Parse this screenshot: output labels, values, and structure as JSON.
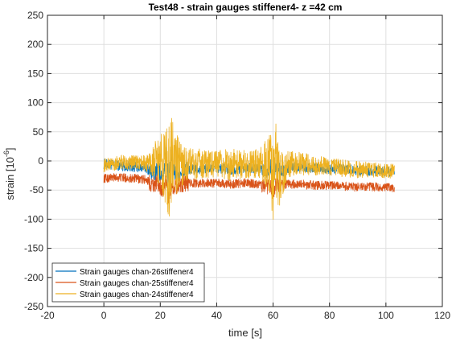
{
  "chart_data": {
    "type": "line",
    "title": "Test48 - strain gauges stiffener4- z =42 cm",
    "xlabel": "time [s]",
    "ylabel_base": "strain [10",
    "ylabel_exp": "-6",
    "ylabel_tail": "]",
    "xlim": [
      -20,
      120
    ],
    "ylim": [
      -250,
      250
    ],
    "xticks": [
      -20,
      0,
      20,
      40,
      60,
      80,
      100,
      120
    ],
    "yticks": [
      -250,
      -200,
      -150,
      -100,
      -50,
      0,
      50,
      100,
      150,
      200,
      250
    ],
    "grid": true,
    "legend_position": "bottom-left",
    "series": [
      {
        "name": "Strain gauges chan-26stiffener4",
        "color": "#0072BD",
        "x": [
          0,
          5,
          10,
          15,
          17,
          19,
          21,
          22,
          23,
          24,
          25,
          27,
          30,
          35,
          40,
          45,
          50,
          55,
          58,
          59,
          60,
          61,
          62,
          65,
          70,
          75,
          80,
          85,
          90,
          95,
          100,
          103
        ],
        "y": [
          -5,
          -8,
          -10,
          -12,
          -20,
          -15,
          -25,
          15,
          -30,
          10,
          -20,
          -18,
          -15,
          -14,
          -12,
          -15,
          -12,
          -14,
          -20,
          -5,
          -40,
          -10,
          -15,
          -12,
          -10,
          -12,
          -15,
          -14,
          -16,
          -17,
          -18,
          -18
        ]
      },
      {
        "name": "Strain gauges chan-25stiffener4",
        "color": "#D95319",
        "x": [
          0,
          5,
          10,
          15,
          17,
          19,
          21,
          22,
          23,
          24,
          25,
          27,
          30,
          35,
          40,
          45,
          50,
          55,
          58,
          59,
          60,
          61,
          62,
          65,
          70,
          75,
          80,
          85,
          90,
          95,
          100,
          103
        ],
        "y": [
          -30,
          -28,
          -30,
          -32,
          -40,
          -38,
          -50,
          -35,
          -60,
          -40,
          -45,
          -40,
          -38,
          -38,
          -38,
          -40,
          -38,
          -40,
          -45,
          -42,
          -55,
          -40,
          -42,
          -40,
          -40,
          -42,
          -42,
          -44,
          -45,
          -45,
          -46,
          -46
        ]
      },
      {
        "name": "Strain gauges chan-24stiffener4",
        "color": "#EDB120",
        "x": [
          0,
          5,
          10,
          15,
          17,
          19,
          21,
          22,
          23,
          24,
          25,
          27,
          30,
          35,
          40,
          45,
          50,
          55,
          58,
          59,
          60,
          61,
          62,
          65,
          70,
          75,
          80,
          85,
          90,
          95,
          100,
          103
        ],
        "y": [
          5,
          6,
          7,
          8,
          20,
          25,
          30,
          60,
          -110,
          87,
          -20,
          20,
          15,
          10,
          8,
          10,
          8,
          10,
          30,
          55,
          -115,
          65,
          -95,
          10,
          5,
          2,
          0,
          -2,
          -3,
          -5,
          -6,
          -6
        ],
        "x_min": [
          0,
          5,
          10,
          15,
          17,
          19,
          21,
          22,
          23,
          24,
          25,
          27,
          30,
          35,
          40,
          45,
          50,
          55,
          58,
          59,
          60,
          61,
          62,
          65,
          70,
          75,
          80,
          85,
          90,
          95,
          100,
          103
        ],
        "y_min": [
          -20,
          -15,
          -15,
          -18,
          -30,
          -40,
          -60,
          -80,
          -110,
          -70,
          -75,
          -45,
          -35,
          -30,
          -30,
          -35,
          -30,
          -30,
          -50,
          -70,
          -115,
          -60,
          -95,
          -30,
          -25,
          -25,
          -25,
          -28,
          -30,
          -30,
          -30,
          -30
        ],
        "y_max": [
          5,
          10,
          10,
          10,
          25,
          40,
          55,
          70,
          60,
          87,
          60,
          35,
          25,
          20,
          18,
          22,
          20,
          22,
          40,
          55,
          30,
          65,
          20,
          20,
          15,
          10,
          5,
          3,
          0,
          -2,
          -5,
          -5
        ]
      }
    ]
  }
}
